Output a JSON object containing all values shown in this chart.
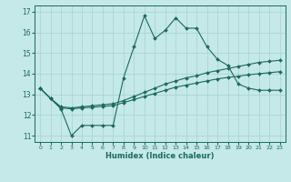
{
  "xlabel": "Humidex (Indice chaleur)",
  "background_color": "#c5e8e8",
  "grid_color": "#a8d0d0",
  "line_color": "#1a6b5a",
  "xlim": [
    -0.5,
    23.5
  ],
  "ylim": [
    10.7,
    17.3
  ],
  "xticks": [
    0,
    1,
    2,
    3,
    4,
    5,
    6,
    7,
    8,
    9,
    10,
    11,
    12,
    13,
    14,
    15,
    16,
    17,
    18,
    19,
    20,
    21,
    22,
    23
  ],
  "yticks": [
    11,
    12,
    13,
    14,
    15,
    16,
    17
  ],
  "line1_x": [
    0,
    1,
    2,
    3,
    4,
    5,
    6,
    7,
    8,
    9,
    10,
    11,
    12,
    13,
    14,
    15,
    16,
    17,
    18,
    19,
    20,
    21,
    22,
    23
  ],
  "line1_y": [
    13.3,
    12.8,
    12.3,
    11.0,
    11.5,
    11.5,
    11.5,
    11.5,
    13.8,
    15.3,
    16.8,
    15.7,
    16.1,
    16.7,
    16.2,
    16.2,
    15.3,
    14.7,
    14.4,
    13.5,
    13.3,
    13.2,
    13.2,
    13.2
  ],
  "line2_x": [
    0,
    1,
    2,
    3,
    4,
    5,
    6,
    7,
    8,
    9,
    10,
    11,
    12,
    13,
    14,
    15,
    16,
    17,
    18,
    19,
    20,
    21,
    22,
    23
  ],
  "line2_y": [
    13.3,
    12.8,
    12.4,
    12.35,
    12.4,
    12.45,
    12.5,
    12.55,
    12.7,
    12.9,
    13.1,
    13.3,
    13.5,
    13.65,
    13.8,
    13.9,
    14.05,
    14.15,
    14.25,
    14.35,
    14.45,
    14.55,
    14.6,
    14.65
  ],
  "line3_x": [
    0,
    1,
    2,
    3,
    4,
    5,
    6,
    7,
    8,
    9,
    10,
    11,
    12,
    13,
    14,
    15,
    16,
    17,
    18,
    19,
    20,
    21,
    22,
    23
  ],
  "line3_y": [
    13.3,
    12.8,
    12.35,
    12.3,
    12.35,
    12.38,
    12.42,
    12.46,
    12.6,
    12.75,
    12.9,
    13.05,
    13.2,
    13.35,
    13.45,
    13.55,
    13.65,
    13.75,
    13.82,
    13.88,
    13.95,
    14.0,
    14.05,
    14.1
  ]
}
